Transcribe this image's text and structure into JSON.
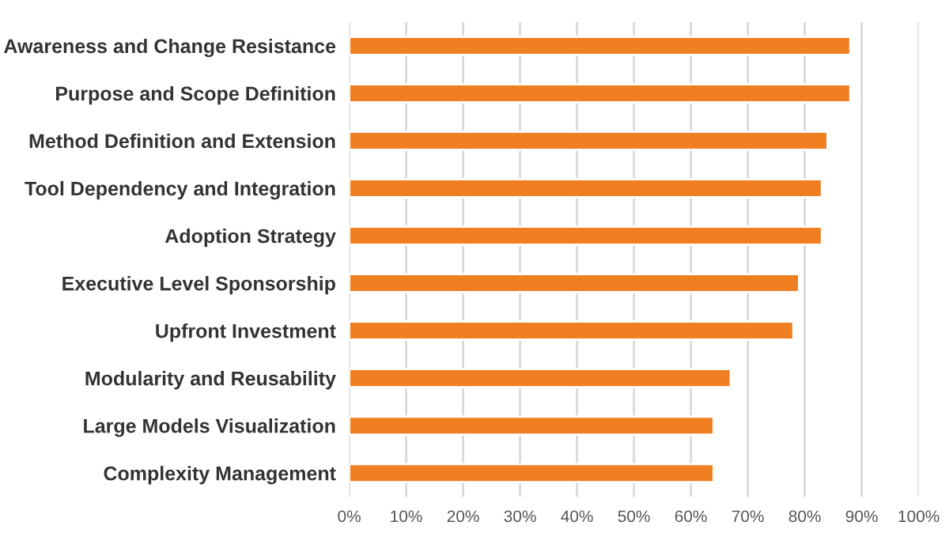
{
  "chart_data": {
    "type": "bar",
    "orientation": "horizontal",
    "categories": [
      "Awareness and Change Resistance",
      "Purpose and Scope Definition",
      "Method Definition and Extension",
      "Tool Dependency and Integration",
      "Adoption Strategy",
      "Executive Level Sponsorship",
      "Upfront Investment",
      "Modularity and Reusability",
      "Large Models Visualization",
      "Complexity Management"
    ],
    "values": [
      88,
      88,
      84,
      83,
      83,
      79,
      78,
      67,
      64,
      64
    ],
    "color": "#f07f22",
    "xlim": [
      0,
      100
    ],
    "xticks": [
      {
        "value": 0,
        "label": "0%"
      },
      {
        "value": 10,
        "label": "10%"
      },
      {
        "value": 20,
        "label": "20%"
      },
      {
        "value": 30,
        "label": "30%"
      },
      {
        "value": 40,
        "label": "40%"
      },
      {
        "value": 50,
        "label": "50%"
      },
      {
        "value": 60,
        "label": "60%"
      },
      {
        "value": 70,
        "label": "70%"
      },
      {
        "value": 80,
        "label": "80%"
      },
      {
        "value": 90,
        "label": "90%"
      },
      {
        "value": 100,
        "label": "100%"
      }
    ],
    "grid": "x"
  }
}
